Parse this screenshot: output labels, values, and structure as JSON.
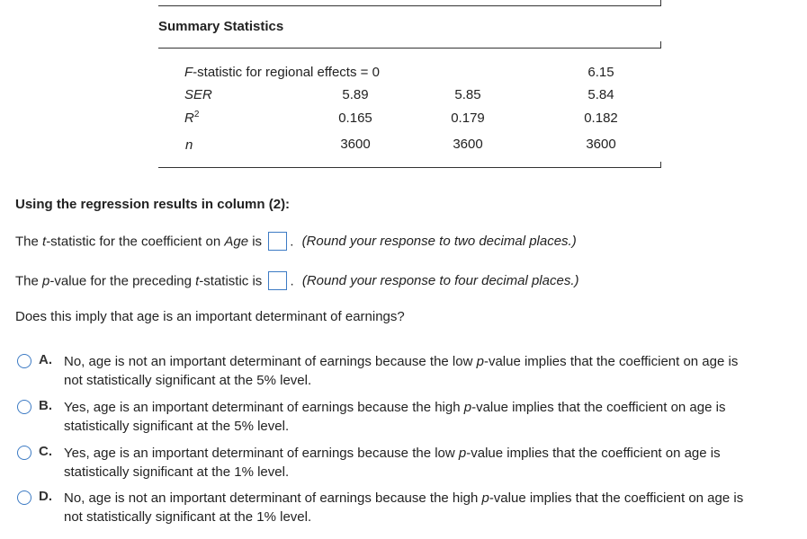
{
  "summary": {
    "title": "Summary Statistics",
    "rows": [
      {
        "label": "F-statistic for regional effects = 0",
        "label_style": "italic-f",
        "values": [
          "",
          "",
          "6.15"
        ]
      },
      {
        "label": "SER",
        "values": [
          "5.89",
          "5.85",
          "5.84"
        ]
      },
      {
        "label_main": "R",
        "label_sup": "2",
        "values": [
          "0.165",
          "0.179",
          "0.182"
        ]
      },
      {
        "label": "n",
        "values": [
          "3600",
          "3600",
          "3600"
        ]
      }
    ]
  },
  "question": {
    "header": "Using the regression results in column (2):",
    "line1": {
      "pre": "The ",
      "t": "t",
      "mid": "-statistic for the coefficient on ",
      "age": "Age",
      "post": " is",
      "hint": "(Round your response to two decimal places.)"
    },
    "line2": {
      "pre": "The ",
      "p": "p",
      "mid": "-value for the preceding ",
      "t": "t",
      "post": "-statistic is",
      "hint": "(Round your response to four decimal places.)"
    },
    "line3": "Does this imply that age is an important determinant of earnings?"
  },
  "options": [
    {
      "letter": "A.",
      "line1a": "No, age is not an important determinant of earnings because the low ",
      "p": "p",
      "line1b": "-value implies that the coefficient on age is",
      "line2": "not statistically significant at the 5% level."
    },
    {
      "letter": "B.",
      "line1a": "Yes, age is an important determinant of earnings because the high ",
      "p": "p",
      "line1b": "-value implies that the coefficient on age is",
      "line2": "statistically significant at the 5% level."
    },
    {
      "letter": "C.",
      "line1a": "Yes, age is an important determinant of earnings because the low ",
      "p": "p",
      "line1b": "-value implies that the coefficient on age is",
      "line2": "statistically significant at the 1% level."
    },
    {
      "letter": "D.",
      "line1a": "No, age is not an important determinant of earnings because the high ",
      "p": "p",
      "line1b": "-value implies that the coefficient on age is",
      "line2": "not statistically significant at the 1% level."
    }
  ],
  "colors": {
    "accent": "#3d7bc4",
    "text": "#222222",
    "rule": "#333333"
  }
}
